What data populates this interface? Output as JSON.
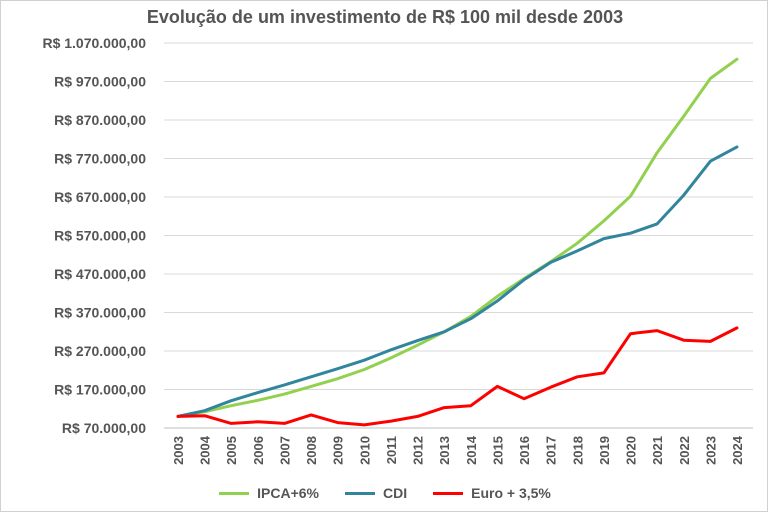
{
  "chart_data": {
    "type": "line",
    "title": "Evolução de um investimento de R$ 100 mil desde 2003",
    "xlabel": "",
    "ylabel": "",
    "x": [
      "2003",
      "2004",
      "2005",
      "2006",
      "2007",
      "2008",
      "2009",
      "2010",
      "2011",
      "2012",
      "2013",
      "2014",
      "2015",
      "2016",
      "2017",
      "2018",
      "2019",
      "2020",
      "2021",
      "2022",
      "2023",
      "2024"
    ],
    "ylim": [
      70000,
      1070000
    ],
    "yticks": [
      70000,
      170000,
      270000,
      370000,
      470000,
      570000,
      670000,
      770000,
      870000,
      970000,
      1070000
    ],
    "ytick_labels": [
      "R$ 70.000,00",
      "R$ 170.000,00",
      "R$ 270.000,00",
      "R$ 370.000,00",
      "R$ 470.000,00",
      "R$ 570.000,00",
      "R$ 670.000,00",
      "R$ 770.000,00",
      "R$ 870.000,00",
      "R$ 970.000,00",
      "R$ 1.070.000,00"
    ],
    "grid": true,
    "legend_position": "bottom",
    "series": [
      {
        "name": "IPCA+6%",
        "color": "#92d050",
        "values": [
          100000,
          112000,
          128000,
          142000,
          158000,
          178000,
          198000,
          222000,
          252000,
          285000,
          320000,
          360000,
          412000,
          458000,
          502000,
          550000,
          608000,
          672000,
          785000,
          880000,
          978000,
          1028000
        ]
      },
      {
        "name": "CDI",
        "color": "#31859c",
        "values": [
          100000,
          115000,
          141000,
          162000,
          182000,
          203000,
          224000,
          246000,
          273000,
          297000,
          320000,
          354000,
          400000,
          455000,
          500000,
          530000,
          562000,
          576000,
          600000,
          675000,
          763000,
          800000
        ]
      },
      {
        "name": "Euro + 3,5%",
        "color": "#ff0000",
        "values": [
          100000,
          102000,
          82000,
          86000,
          82000,
          104000,
          84000,
          78000,
          88000,
          100000,
          123000,
          128000,
          178000,
          146000,
          176000,
          203000,
          213000,
          315000,
          323000,
          298000,
          295000,
          330000
        ]
      }
    ]
  }
}
